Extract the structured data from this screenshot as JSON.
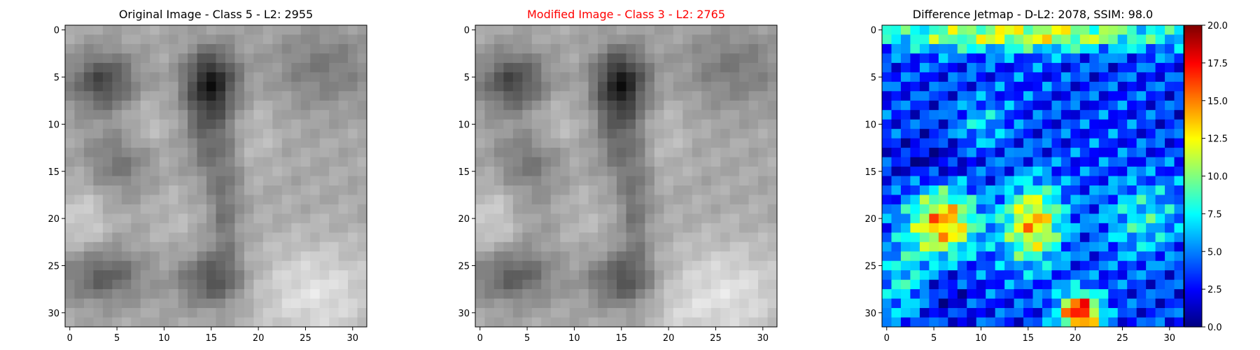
{
  "figure": {
    "background": "#ffffff"
  },
  "chart_data": [
    {
      "type": "heatmap",
      "title": "Original Image - Class 5 - L2: 2955",
      "title_color": "#000000",
      "colormap": "gray",
      "xlim": [
        -0.5,
        31.5
      ],
      "ylim": [
        31.5,
        -0.5
      ],
      "xticks": [
        0,
        5,
        10,
        15,
        20,
        25,
        30
      ],
      "yticks": [
        0,
        5,
        10,
        15,
        20,
        25,
        30
      ],
      "xtick_labels": [
        "0",
        "5",
        "10",
        "15",
        "20",
        "25",
        "30"
      ],
      "ytick_labels": [
        "0",
        "5",
        "10",
        "15",
        "20",
        "25",
        "30"
      ],
      "grid": false,
      "colorbar": false
    },
    {
      "type": "heatmap",
      "title": "Modified Image - Class 3 - L2: 2765",
      "title_color": "#ff0000",
      "colormap": "gray",
      "xlim": [
        -0.5,
        31.5
      ],
      "ylim": [
        31.5,
        -0.5
      ],
      "xticks": [
        0,
        5,
        10,
        15,
        20,
        25,
        30
      ],
      "yticks": [
        0,
        5,
        10,
        15,
        20,
        25,
        30
      ],
      "xtick_labels": [
        "0",
        "5",
        "10",
        "15",
        "20",
        "25",
        "30"
      ],
      "ytick_labels": [
        "0",
        "5",
        "10",
        "15",
        "20",
        "25",
        "30"
      ],
      "grid": false,
      "colorbar": false
    },
    {
      "type": "heatmap",
      "title": "Difference Jetmap - D-L2: 2078, SSIM: 98.0",
      "title_color": "#000000",
      "colormap": "jet",
      "xlim": [
        -0.5,
        31.5
      ],
      "ylim": [
        31.5,
        -0.5
      ],
      "xticks": [
        0,
        5,
        10,
        15,
        20,
        25,
        30
      ],
      "yticks": [
        0,
        5,
        10,
        15,
        20,
        25,
        30
      ],
      "xtick_labels": [
        "0",
        "5",
        "10",
        "15",
        "20",
        "25",
        "30"
      ],
      "ytick_labels": [
        "0",
        "5",
        "10",
        "15",
        "20",
        "25",
        "30"
      ],
      "grid": false,
      "colorbar": true,
      "colorbar_range": [
        0.0,
        20.0
      ],
      "colorbar_ticks": [
        0.0,
        2.5,
        5.0,
        7.5,
        10.0,
        12.5,
        15.0,
        17.5,
        20.0
      ],
      "colorbar_tick_labels": [
        "0.0",
        "2.5",
        "5.0",
        "7.5",
        "10.0",
        "12.5",
        "15.0",
        "17.5",
        "20.0"
      ]
    }
  ]
}
